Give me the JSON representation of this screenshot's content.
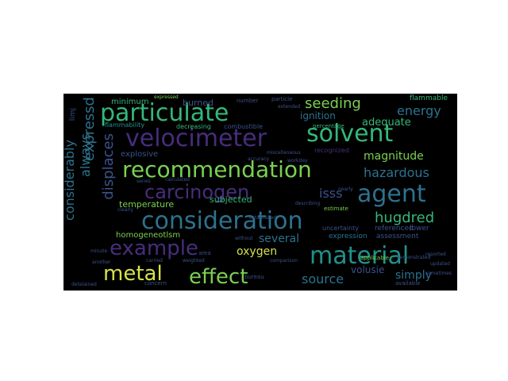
{
  "palette": {
    "yellow": "#d6e14a",
    "lightgreen": "#7ad151",
    "green": "#35b779",
    "teal": "#21918c",
    "blue": "#2c728e",
    "slate": "#3b528b",
    "purple": "#472d7b",
    "dark": "#44015466"
  },
  "words": [
    {
      "text": "velocimeter",
      "color": "#472d7b",
      "size": 30,
      "vertical": false
    },
    {
      "text": "particulate",
      "color": "#35b779",
      "size": 30,
      "vertical": false
    },
    {
      "text": "solvent",
      "color": "#35b779",
      "size": 30,
      "vertical": false
    },
    {
      "text": "recommendation",
      "color": "#7ad151",
      "size": 28,
      "vertical": false
    },
    {
      "text": "carcinogen",
      "color": "#472d7b",
      "size": 24,
      "vertical": false
    },
    {
      "text": "agent",
      "color": "#2c728e",
      "size": 30,
      "vertical": false
    },
    {
      "text": "isss",
      "color": "#3b528b",
      "size": 16,
      "vertical": false
    },
    {
      "text": "consideration",
      "color": "#2c728e",
      "size": 30,
      "vertical": false
    },
    {
      "text": "example",
      "color": "#472d7b",
      "size": 26,
      "vertical": false
    },
    {
      "text": "material",
      "color": "#21918c",
      "size": 30,
      "vertical": false
    },
    {
      "text": "metal",
      "color": "#d6e14a",
      "size": 26,
      "vertical": false
    },
    {
      "text": "effect",
      "color": "#7ad151",
      "size": 26,
      "vertical": false
    },
    {
      "text": "seeding",
      "color": "#7ad151",
      "size": 18,
      "vertical": false
    },
    {
      "text": "energy",
      "color": "#2c728e",
      "size": 16,
      "vertical": false
    },
    {
      "text": "adequate",
      "color": "#35b779",
      "size": 13,
      "vertical": false
    },
    {
      "text": "magnitude",
      "color": "#7ad151",
      "size": 14,
      "vertical": false
    },
    {
      "text": "hazardous",
      "color": "#2c728e",
      "size": 16,
      "vertical": false
    },
    {
      "text": "hugdred",
      "color": "#35b779",
      "size": 18,
      "vertical": false
    },
    {
      "text": "oxygen",
      "color": "#d6e14a",
      "size": 14,
      "vertical": false
    },
    {
      "text": "several",
      "color": "#2c728e",
      "size": 14,
      "vertical": false
    },
    {
      "text": "source",
      "color": "#2c728e",
      "size": 16,
      "vertical": false
    },
    {
      "text": "simply",
      "color": "#2c728e",
      "size": 14,
      "vertical": false
    },
    {
      "text": "volusie",
      "color": "#3b528b",
      "size": 12,
      "vertical": false
    },
    {
      "text": "temperature",
      "color": "#7ad151",
      "size": 11,
      "vertical": false
    },
    {
      "text": "homogeneotlsm",
      "color": "#7ad151",
      "size": 10,
      "vertical": false
    },
    {
      "text": "explosive",
      "color": "#3b528b",
      "size": 10,
      "vertical": false
    },
    {
      "text": "subjected",
      "color": "#35b779",
      "size": 11,
      "vertical": false
    },
    {
      "text": "burned",
      "color": "#3b528b",
      "size": 11,
      "vertical": false
    },
    {
      "text": "minimum",
      "color": "#35b779",
      "size": 10,
      "vertical": false
    },
    {
      "text": "ignition",
      "color": "#2c728e",
      "size": 12,
      "vertical": false
    },
    {
      "text": "flammable",
      "color": "#35b779",
      "size": 9,
      "vertical": false
    },
    {
      "text": "flammability",
      "color": "#21918c",
      "size": 8,
      "vertical": false
    },
    {
      "text": "decreasing",
      "color": "#35b779",
      "size": 8,
      "vertical": false
    },
    {
      "text": "combustible",
      "color": "#3b528b",
      "size": 8,
      "vertical": false
    },
    {
      "text": "referenced",
      "color": "#3b528b",
      "size": 9,
      "vertical": false
    },
    {
      "text": "expression",
      "color": "#2c728e",
      "size": 9,
      "vertical": false
    },
    {
      "text": "assessment",
      "color": "#3b528b",
      "size": 9,
      "vertical": false
    },
    {
      "text": "lower",
      "color": "#3b528b",
      "size": 9,
      "vertical": false
    },
    {
      "text": "uncertainty",
      "color": "#3b528b",
      "size": 8,
      "vertical": false
    },
    {
      "text": "recognized",
      "color": "#472d7b",
      "size": 8,
      "vertical": false
    },
    {
      "text": "percentage",
      "color": "#35b779",
      "size": 7,
      "vertical": false
    },
    {
      "text": "estimate",
      "color": "#7ad151",
      "size": 7,
      "vertical": false
    },
    {
      "text": "applicable",
      "color": "#7ad151",
      "size": 7,
      "vertical": false
    },
    {
      "text": "demonstrated",
      "color": "#3b528b",
      "size": 6,
      "vertical": false
    },
    {
      "text": "available",
      "color": "#3b528b",
      "size": 7,
      "vertical": false
    },
    {
      "text": "bureau",
      "color": "#3b528b",
      "size": 7,
      "vertical": false
    },
    {
      "text": "concern",
      "color": "#3b528b",
      "size": 7,
      "vertical": false
    },
    {
      "text": "carried",
      "color": "#3b528b",
      "size": 6,
      "vertical": false
    },
    {
      "text": "weighted",
      "color": "#3b528b",
      "size": 6,
      "vertical": false
    },
    {
      "text": "area",
      "color": "#3b528b",
      "size": 7,
      "vertical": false
    },
    {
      "text": "detelained",
      "color": "#3b528b",
      "size": 6,
      "vertical": false
    },
    {
      "text": "another",
      "color": "#3b528b",
      "size": 6,
      "vertical": false
    },
    {
      "text": "calculated",
      "color": "#3b528b",
      "size": 6,
      "vertical": false
    },
    {
      "text": "series",
      "color": "#3b528b",
      "size": 6,
      "vertical": false
    },
    {
      "text": "miscellaneous",
      "color": "#3b528b",
      "size": 6,
      "vertical": false
    },
    {
      "text": "accuracy",
      "color": "#3b528b",
      "size": 6,
      "vertical": false
    },
    {
      "text": "workday",
      "color": "#3b528b",
      "size": 6,
      "vertical": false
    },
    {
      "text": "number",
      "color": "#3b528b",
      "size": 7,
      "vertical": false
    },
    {
      "text": "particle",
      "color": "#3b528b",
      "size": 7,
      "vertical": false
    },
    {
      "text": "extended",
      "color": "#3b528b",
      "size": 6,
      "vertical": false
    },
    {
      "text": "expressed",
      "color": "#7ad151",
      "size": 6,
      "vertical": false
    },
    {
      "text": "describing",
      "color": "#3b528b",
      "size": 6,
      "vertical": false
    },
    {
      "text": "nearly",
      "color": "#3b528b",
      "size": 6,
      "vertical": false
    },
    {
      "text": "reported",
      "color": "#3b528b",
      "size": 6,
      "vertical": false
    },
    {
      "text": "updated",
      "color": "#3b528b",
      "size": 6,
      "vertical": false
    },
    {
      "text": "without",
      "color": "#3b528b",
      "size": 6,
      "vertical": false
    },
    {
      "text": "minute",
      "color": "#3b528b",
      "size": 6,
      "vertical": false
    },
    {
      "text": "clearly",
      "color": "#3b528b",
      "size": 6,
      "vertical": false
    },
    {
      "text": "established",
      "color": "#3b528b",
      "size": 6,
      "vertical": false
    },
    {
      "text": "comparison",
      "color": "#3b528b",
      "size": 6,
      "vertical": false
    },
    {
      "text": "sometimes",
      "color": "#3b528b",
      "size": 6,
      "vertical": false
    },
    {
      "text": "considerably",
      "color": "#2c728e",
      "size": 16,
      "vertical": true
    },
    {
      "text": "always",
      "color": "#2c728e",
      "size": 16,
      "vertical": true
    },
    {
      "text": "expressd",
      "color": "#2c728e",
      "size": 18,
      "vertical": true
    },
    {
      "text": "displaces",
      "color": "#3b528b",
      "size": 18,
      "vertical": true
    },
    {
      "text": "limj",
      "color": "#3b528b",
      "size": 9,
      "vertical": true
    }
  ]
}
